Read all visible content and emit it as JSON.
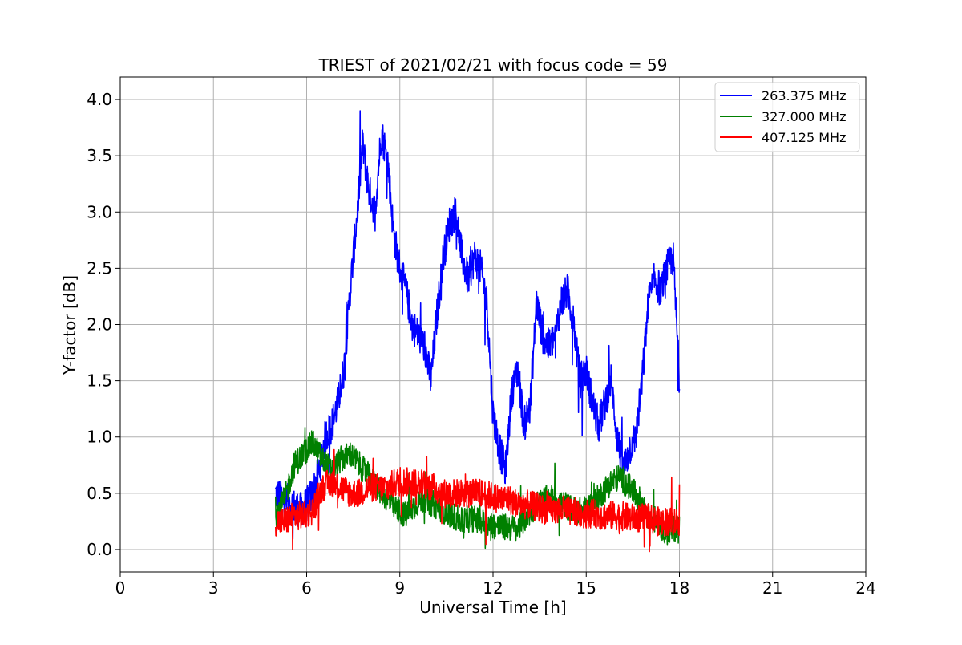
{
  "chart_data": {
    "type": "line",
    "title": "TRIEST of 2021/02/21 with focus code = 59",
    "xlabel": "Universal Time [h]",
    "ylabel": "Y-factor [dB]",
    "xlim": [
      0,
      24
    ],
    "ylim": [
      -0.2,
      4.2
    ],
    "xticks": [
      0,
      3,
      6,
      9,
      12,
      15,
      18,
      21,
      24
    ],
    "yticks": [
      0.0,
      0.5,
      1.0,
      1.5,
      2.0,
      2.5,
      3.0,
      3.5,
      4.0
    ],
    "xtick_labels": [
      "0",
      "3",
      "6",
      "9",
      "12",
      "15",
      "18",
      "21",
      "24"
    ],
    "ytick_labels": [
      "0.0",
      "0.5",
      "1.0",
      "1.5",
      "2.0",
      "2.5",
      "3.0",
      "3.5",
      "4.0"
    ],
    "grid": true,
    "legend_position": "top-right",
    "series": [
      {
        "name": "263.375 MHz",
        "color": "#0000ff",
        "x": [
          5.0,
          5.2,
          5.5,
          5.8,
          6.0,
          6.2,
          6.4,
          6.6,
          6.8,
          7.0,
          7.2,
          7.4,
          7.6,
          7.8,
          8.0,
          8.2,
          8.4,
          8.6,
          8.8,
          9.0,
          9.2,
          9.4,
          9.6,
          9.8,
          10.0,
          10.2,
          10.4,
          10.6,
          10.8,
          11.0,
          11.2,
          11.4,
          11.6,
          11.8,
          12.0,
          12.2,
          12.4,
          12.6,
          12.8,
          13.0,
          13.2,
          13.4,
          13.6,
          13.8,
          14.0,
          14.2,
          14.4,
          14.6,
          14.8,
          15.0,
          15.2,
          15.4,
          15.6,
          15.8,
          16.0,
          16.2,
          16.4,
          16.6,
          16.8,
          17.0,
          17.2,
          17.4,
          17.6,
          17.8,
          18.0
        ],
        "y": [
          0.5,
          0.45,
          0.4,
          0.35,
          0.4,
          0.5,
          0.7,
          1.0,
          1.1,
          1.3,
          1.6,
          2.3,
          2.9,
          3.6,
          3.2,
          3.0,
          3.7,
          3.5,
          2.8,
          2.5,
          2.3,
          2.0,
          1.9,
          1.8,
          1.5,
          2.1,
          2.6,
          2.9,
          3.0,
          2.6,
          2.4,
          2.6,
          2.5,
          2.2,
          1.2,
          0.9,
          0.7,
          1.4,
          1.6,
          1.1,
          1.3,
          2.2,
          1.9,
          1.8,
          1.9,
          2.2,
          2.3,
          2.0,
          1.5,
          1.6,
          1.3,
          1.1,
          1.3,
          1.5,
          1.0,
          0.7,
          0.9,
          1.0,
          1.5,
          2.2,
          2.4,
          2.3,
          2.5,
          2.6,
          1.5
        ],
        "noise": 0.16
      },
      {
        "name": "327.000 MHz",
        "color": "#008000",
        "x": [
          5.0,
          5.3,
          5.6,
          5.9,
          6.2,
          6.5,
          6.8,
          7.1,
          7.4,
          7.7,
          8.0,
          8.3,
          8.6,
          8.9,
          9.2,
          9.5,
          9.8,
          10.1,
          10.4,
          10.7,
          11.0,
          11.3,
          11.6,
          11.9,
          12.2,
          12.5,
          12.8,
          13.1,
          13.4,
          13.7,
          14.0,
          14.3,
          14.6,
          14.9,
          15.2,
          15.5,
          15.8,
          16.1,
          16.4,
          16.7,
          17.0,
          17.3,
          17.6,
          17.9,
          18.0
        ],
        "y": [
          0.3,
          0.45,
          0.75,
          0.85,
          0.95,
          0.8,
          0.7,
          0.8,
          0.85,
          0.75,
          0.65,
          0.55,
          0.45,
          0.35,
          0.3,
          0.4,
          0.45,
          0.4,
          0.35,
          0.3,
          0.25,
          0.28,
          0.25,
          0.22,
          0.2,
          0.2,
          0.18,
          0.3,
          0.4,
          0.45,
          0.45,
          0.4,
          0.35,
          0.35,
          0.4,
          0.5,
          0.6,
          0.65,
          0.55,
          0.45,
          0.3,
          0.25,
          0.15,
          0.2,
          0.2
        ],
        "noise": 0.12
      },
      {
        "name": "407.125 MHz",
        "color": "#ff0000",
        "x": [
          5.0,
          5.3,
          5.6,
          5.9,
          6.2,
          6.5,
          6.8,
          7.1,
          7.4,
          7.7,
          8.0,
          8.3,
          8.6,
          8.9,
          9.2,
          9.5,
          9.8,
          10.1,
          10.4,
          10.7,
          11.0,
          11.3,
          11.6,
          11.9,
          12.2,
          12.5,
          12.8,
          13.1,
          13.4,
          13.7,
          14.0,
          14.3,
          14.6,
          14.9,
          15.2,
          15.5,
          15.8,
          16.1,
          16.4,
          16.7,
          17.0,
          17.3,
          17.6,
          17.9,
          18.0
        ],
        "y": [
          0.25,
          0.25,
          0.3,
          0.3,
          0.35,
          0.55,
          0.6,
          0.55,
          0.5,
          0.5,
          0.55,
          0.55,
          0.55,
          0.6,
          0.6,
          0.6,
          0.58,
          0.55,
          0.5,
          0.5,
          0.5,
          0.5,
          0.5,
          0.48,
          0.45,
          0.45,
          0.4,
          0.4,
          0.38,
          0.35,
          0.35,
          0.35,
          0.33,
          0.32,
          0.32,
          0.3,
          0.3,
          0.3,
          0.28,
          0.28,
          0.28,
          0.25,
          0.25,
          0.25,
          0.25
        ],
        "noise": 0.13
      }
    ]
  }
}
